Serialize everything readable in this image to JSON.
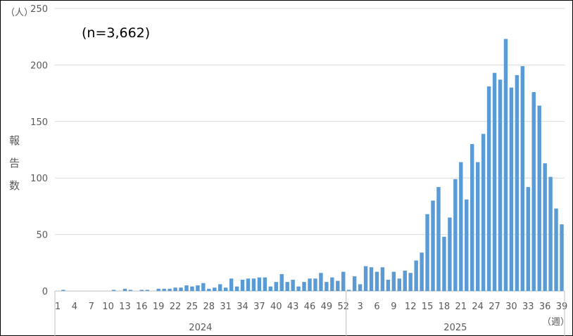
{
  "chart_data": {
    "type": "bar",
    "annotation": "(n=3,662)",
    "y_unit": "（人）",
    "ylabel": "報告数",
    "x_unit": "（週）",
    "ylim": [
      0,
      250
    ],
    "yticks": [
      0,
      50,
      100,
      150,
      200,
      250
    ],
    "grid": true,
    "bar_color": "#5b9bd5",
    "years": [
      {
        "label": "2024",
        "weeks": 52
      },
      {
        "label": "2025",
        "weeks": 39
      }
    ],
    "x_tick_labels": [
      "1",
      "4",
      "7",
      "10",
      "13",
      "16",
      "19",
      "22",
      "25",
      "28",
      "31",
      "34",
      "37",
      "40",
      "43",
      "46",
      "49",
      "52",
      "3",
      "6",
      "9",
      "12",
      "15",
      "18",
      "21",
      "24",
      "27",
      "30",
      "33",
      "36",
      "39"
    ],
    "categories": [
      "2024-W1",
      "2024-W2",
      "2024-W3",
      "2024-W4",
      "2024-W5",
      "2024-W6",
      "2024-W7",
      "2024-W8",
      "2024-W9",
      "2024-W10",
      "2024-W11",
      "2024-W12",
      "2024-W13",
      "2024-W14",
      "2024-W15",
      "2024-W16",
      "2024-W17",
      "2024-W18",
      "2024-W19",
      "2024-W20",
      "2024-W21",
      "2024-W22",
      "2024-W23",
      "2024-W24",
      "2024-W25",
      "2024-W26",
      "2024-W27",
      "2024-W28",
      "2024-W29",
      "2024-W30",
      "2024-W31",
      "2024-W32",
      "2024-W33",
      "2024-W34",
      "2024-W35",
      "2024-W36",
      "2024-W37",
      "2024-W38",
      "2024-W39",
      "2024-W40",
      "2024-W41",
      "2024-W42",
      "2024-W43",
      "2024-W44",
      "2024-W45",
      "2024-W46",
      "2024-W47",
      "2024-W48",
      "2024-W49",
      "2024-W50",
      "2024-W51",
      "2024-W52",
      "2025-W1",
      "2025-W2",
      "2025-W3",
      "2025-W4",
      "2025-W5",
      "2025-W6",
      "2025-W7",
      "2025-W8",
      "2025-W9",
      "2025-W10",
      "2025-W11",
      "2025-W12",
      "2025-W13",
      "2025-W14",
      "2025-W15",
      "2025-W16",
      "2025-W17",
      "2025-W18",
      "2025-W19",
      "2025-W20",
      "2025-W21",
      "2025-W22",
      "2025-W23",
      "2025-W24",
      "2025-W25",
      "2025-W26",
      "2025-W27",
      "2025-W28",
      "2025-W29",
      "2025-W30",
      "2025-W31",
      "2025-W32",
      "2025-W33",
      "2025-W34",
      "2025-W35",
      "2025-W36",
      "2025-W37",
      "2025-W38",
      "2025-W39"
    ],
    "values": [
      0,
      1,
      0,
      0,
      0,
      0,
      0,
      0,
      0,
      0,
      1,
      0,
      2,
      1,
      0,
      1,
      1,
      0,
      2,
      2,
      2,
      3,
      3,
      5,
      4,
      5,
      7,
      2,
      3,
      6,
      3,
      11,
      4,
      10,
      11,
      11,
      12,
      12,
      4,
      8,
      15,
      8,
      10,
      4,
      8,
      11,
      11,
      16,
      8,
      12,
      9,
      17,
      1,
      13,
      6,
      22,
      21,
      17,
      21,
      10,
      17,
      11,
      18,
      16,
      27,
      34,
      68,
      80,
      92,
      48,
      65,
      99,
      114,
      81,
      130,
      114,
      139,
      181,
      193,
      187,
      223,
      180,
      191,
      199,
      92,
      176,
      164,
      113,
      101,
      73,
      59
    ]
  }
}
